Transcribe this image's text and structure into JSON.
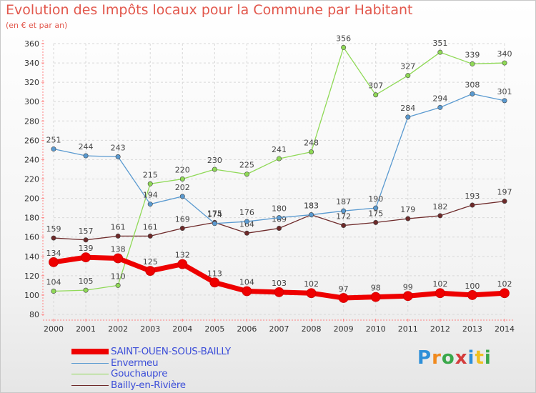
{
  "title": "Evolution des Impôts locaux pour la Commune par Habitant",
  "subtitle": "(en € et par an)",
  "logo_text": "Proxiti",
  "chart_data": {
    "type": "line",
    "title": "Evolution des Impôts locaux pour la Commune par Habitant",
    "subtitle": "(en € et par an)",
    "x": [
      "2000",
      "2001",
      "2002",
      "2003",
      "2004",
      "2005",
      "2006",
      "2007",
      "2008",
      "2009",
      "2010",
      "2011",
      "2012",
      "2013",
      "2014"
    ],
    "ylim": [
      80,
      360
    ],
    "yticks": [
      80,
      100,
      120,
      140,
      160,
      180,
      200,
      220,
      240,
      260,
      280,
      300,
      320,
      340,
      360
    ],
    "grid": true,
    "legend_position": "bottom-left",
    "series": [
      {
        "name": "SAINT-OUEN-SOUS-BAILLY",
        "color": "#ee0000",
        "values": [
          134,
          139,
          138,
          125,
          132,
          113,
          104,
          103,
          102,
          97,
          98,
          99,
          102,
          100,
          102
        ]
      },
      {
        "name": "Envermeu",
        "color": "#5a9ad0",
        "values": [
          251,
          244,
          243,
          194,
          202,
          174,
          176,
          180,
          183,
          187,
          190,
          284,
          294,
          308,
          301
        ]
      },
      {
        "name": "Gouchaupre",
        "color": "#8fd956",
        "values": [
          104,
          105,
          110,
          215,
          220,
          230,
          225,
          241,
          248,
          356,
          307,
          327,
          351,
          339,
          340
        ]
      },
      {
        "name": "Bailly-en-Rivière",
        "color": "#6e2a2a",
        "values": [
          159,
          157,
          161,
          161,
          169,
          175,
          164,
          169,
          183,
          172,
          175,
          179,
          182,
          193,
          197
        ]
      }
    ]
  }
}
